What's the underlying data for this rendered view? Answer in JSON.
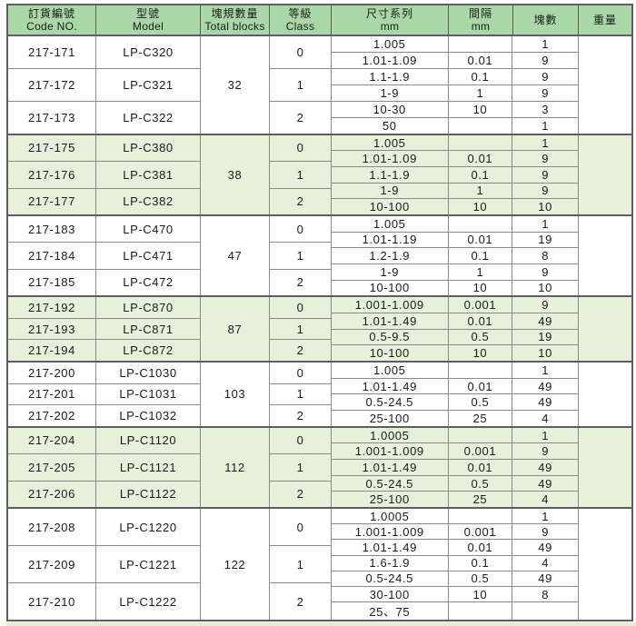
{
  "colors": {
    "header_bg": "#a9d7a7",
    "row_highlight_bg": "#e6f0da",
    "grid_line": "#8a8a8a",
    "heavy_line": "#5e5e5e",
    "text": "#1b1b1b"
  },
  "table": {
    "header": {
      "cols": [
        {
          "id": "code",
          "line1": "訂貨編號",
          "line2": "Code NO."
        },
        {
          "id": "model",
          "line1": "型號",
          "line2": "Model"
        },
        {
          "id": "total",
          "line1": "塊規數量",
          "line2": "Total blocks"
        },
        {
          "id": "class",
          "line1": "等級",
          "line2": "Class"
        },
        {
          "id": "size",
          "line1": "尺寸系列",
          "line2": "mm"
        },
        {
          "id": "interval",
          "line1": "間隔",
          "line2": "mm"
        },
        {
          "id": "count",
          "line1": "塊數",
          "line2": ""
        },
        {
          "id": "weight",
          "line1": "重量",
          "line2": ""
        }
      ]
    },
    "groups": [
      {
        "shade": "white",
        "total": "32",
        "items": [
          {
            "code": "217-171",
            "model": "LP-C320"
          },
          {
            "code": "217-172",
            "model": "LP-C321"
          },
          {
            "code": "217-173",
            "model": "LP-C322"
          }
        ],
        "classes": [
          "0",
          "1",
          "2"
        ],
        "rows": [
          {
            "size": "1.005",
            "interval": "",
            "count": "1"
          },
          {
            "size": "1.01-1.09",
            "interval": "0.01",
            "count": "9"
          },
          {
            "size": "1.1-1.9",
            "interval": "0.1",
            "count": "9"
          },
          {
            "size": "1-9",
            "interval": "1",
            "count": "9"
          },
          {
            "size": "10-30",
            "interval": "10",
            "count": "3"
          },
          {
            "size": "50",
            "interval": "",
            "count": "1"
          }
        ],
        "weight": ""
      },
      {
        "shade": "green",
        "total": "38",
        "items": [
          {
            "code": "217-175",
            "model": "LP-C380"
          },
          {
            "code": "217-176",
            "model": "LP-C381"
          },
          {
            "code": "217-177",
            "model": "LP-C382"
          }
        ],
        "classes": [
          "0",
          "1",
          "2"
        ],
        "rows": [
          {
            "size": "1.005",
            "interval": "",
            "count": "1"
          },
          {
            "size": "1.01-1.09",
            "interval": "0.01",
            "count": "9"
          },
          {
            "size": "1.1-1.9",
            "interval": "0.1",
            "count": "9"
          },
          {
            "size": "1-9",
            "interval": "1",
            "count": "9"
          },
          {
            "size": "10-100",
            "interval": "10",
            "count": "10"
          }
        ],
        "weight": ""
      },
      {
        "shade": "white",
        "total": "47",
        "items": [
          {
            "code": "217-183",
            "model": "LP-C470"
          },
          {
            "code": "217-184",
            "model": "LP-C471"
          },
          {
            "code": "217-185",
            "model": "LP-C472"
          }
        ],
        "classes": [
          "0",
          "1",
          "2"
        ],
        "rows": [
          {
            "size": "1.005",
            "interval": "",
            "count": "1"
          },
          {
            "size": "1.01-1.19",
            "interval": "0.01",
            "count": "19"
          },
          {
            "size": "1.2-1.9",
            "interval": "0.1",
            "count": "8"
          },
          {
            "size": "1-9",
            "interval": "1",
            "count": "9"
          },
          {
            "size": "10-100",
            "interval": "10",
            "count": "10"
          }
        ],
        "weight": ""
      },
      {
        "shade": "green",
        "total": "87",
        "items": [
          {
            "code": "217-192",
            "model": "LP-C870"
          },
          {
            "code": "217-193",
            "model": "LP-C871"
          },
          {
            "code": "217-194",
            "model": "LP-C872"
          }
        ],
        "classes": [
          "0",
          "1",
          "2"
        ],
        "rows": [
          {
            "size": "1.001-1.009",
            "interval": "0.001",
            "count": "9"
          },
          {
            "size": "1.01-1.49",
            "interval": "0.01",
            "count": "49"
          },
          {
            "size": "0.5-9.5",
            "interval": "0.5",
            "count": "19"
          },
          {
            "size": "10-100",
            "interval": "10",
            "count": "10"
          }
        ],
        "weight": ""
      },
      {
        "shade": "white",
        "total": "103",
        "items": [
          {
            "code": "217-200",
            "model": "LP-C1030"
          },
          {
            "code": "217-201",
            "model": "LP-C1031"
          },
          {
            "code": "217-202",
            "model": "LP-C1032"
          }
        ],
        "classes": [
          "0",
          "1",
          "2"
        ],
        "rows": [
          {
            "size": "1.005",
            "interval": "",
            "count": "1"
          },
          {
            "size": "1.01-1.49",
            "interval": "0.01",
            "count": "49"
          },
          {
            "size": "0.5-24.5",
            "interval": "0.5",
            "count": "49"
          },
          {
            "size": "25-100",
            "interval": "25",
            "count": "4"
          }
        ],
        "weight": ""
      },
      {
        "shade": "green",
        "total": "112",
        "items": [
          {
            "code": "217-204",
            "model": "LP-C1120"
          },
          {
            "code": "217-205",
            "model": "LP-C1121"
          },
          {
            "code": "217-206",
            "model": "LP-C1122"
          }
        ],
        "classes": [
          "0",
          "1",
          "2"
        ],
        "rows": [
          {
            "size": "1.0005",
            "interval": "",
            "count": "1"
          },
          {
            "size": "1.001-1.009",
            "interval": "0.001",
            "count": "9"
          },
          {
            "size": "1.01-1.49",
            "interval": "0.01",
            "count": "49"
          },
          {
            "size": "0.5-24.5",
            "interval": "0.5",
            "count": "49"
          },
          {
            "size": "25-100",
            "interval": "25",
            "count": "4"
          }
        ],
        "weight": ""
      },
      {
        "shade": "white",
        "total": "122",
        "items": [
          {
            "code": "217-208",
            "model": "LP-C1220"
          },
          {
            "code": "217-209",
            "model": "LP-C1221"
          },
          {
            "code": "217-210",
            "model": "LP-C1222"
          }
        ],
        "classes": [
          "0",
          "1",
          "2"
        ],
        "rows": [
          {
            "size": "1.0005",
            "interval": "",
            "count": "1"
          },
          {
            "size": "1.001-1.009",
            "interval": "0.001",
            "count": "9"
          },
          {
            "size": "1.01-1.49",
            "interval": "0.01",
            "count": "49"
          },
          {
            "size": "1.6-1.9",
            "interval": "0.1",
            "count": "4"
          },
          {
            "size": "0.5-24.5",
            "interval": "0.5",
            "count": "49"
          },
          {
            "size": "30-100",
            "interval": "10",
            "count": "8"
          },
          {
            "size": "25、75",
            "interval": "",
            "count": ""
          }
        ],
        "weight": ""
      }
    ]
  }
}
